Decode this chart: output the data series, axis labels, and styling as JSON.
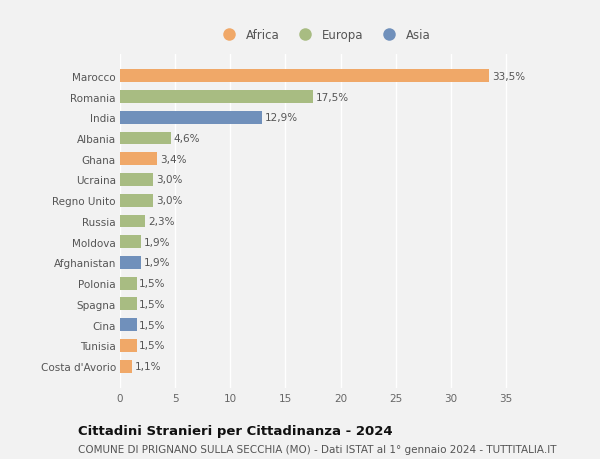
{
  "categories": [
    "Costa d'Avorio",
    "Tunisia",
    "Cina",
    "Spagna",
    "Polonia",
    "Afghanistan",
    "Moldova",
    "Russia",
    "Regno Unito",
    "Ucraina",
    "Ghana",
    "Albania",
    "India",
    "Romania",
    "Marocco"
  ],
  "values": [
    1.1,
    1.5,
    1.5,
    1.5,
    1.5,
    1.9,
    1.9,
    2.3,
    3.0,
    3.0,
    3.4,
    4.6,
    12.9,
    17.5,
    33.5
  ],
  "labels": [
    "1,1%",
    "1,5%",
    "1,5%",
    "1,5%",
    "1,5%",
    "1,9%",
    "1,9%",
    "2,3%",
    "3,0%",
    "3,0%",
    "3,4%",
    "4,6%",
    "12,9%",
    "17,5%",
    "33,5%"
  ],
  "colors": [
    "#f0a868",
    "#f0a868",
    "#7090bb",
    "#a8bc82",
    "#a8bc82",
    "#7090bb",
    "#a8bc82",
    "#a8bc82",
    "#a8bc82",
    "#a8bc82",
    "#f0a868",
    "#a8bc82",
    "#7090bb",
    "#a8bc82",
    "#f0a868"
  ],
  "legend_labels": [
    "Africa",
    "Europa",
    "Asia"
  ],
  "legend_colors": [
    "#f0a868",
    "#a8bc82",
    "#7090bb"
  ],
  "title": "Cittadini Stranieri per Cittadinanza - 2024",
  "subtitle": "COMUNE DI PRIGNANO SULLA SECCHIA (MO) - Dati ISTAT al 1° gennaio 2024 - TUTTITALIA.IT",
  "xlim": [
    0,
    37
  ],
  "xticks": [
    0,
    5,
    10,
    15,
    20,
    25,
    30,
    35
  ],
  "bg_color": "#f2f2f2",
  "bar_height": 0.62,
  "title_fontsize": 9.5,
  "subtitle_fontsize": 7.5,
  "label_fontsize": 7.5,
  "tick_fontsize": 7.5,
  "legend_fontsize": 8.5
}
